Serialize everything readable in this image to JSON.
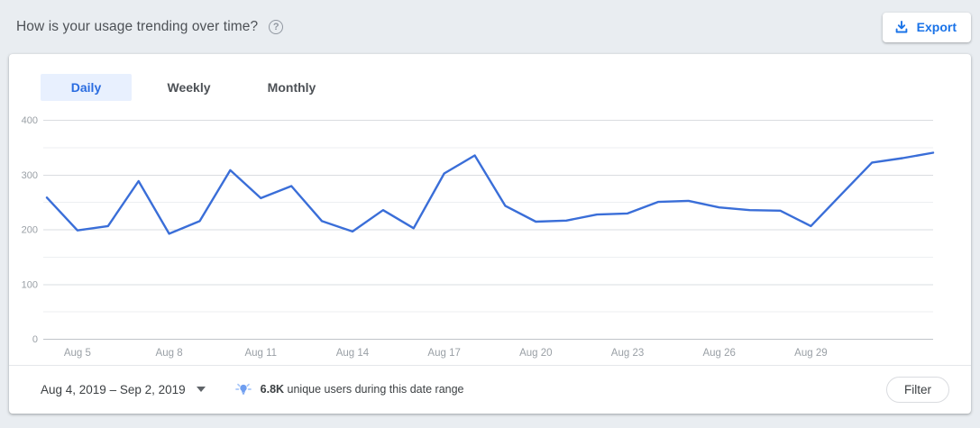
{
  "header": {
    "title": "How is your usage trending over time?",
    "export_label": "Export"
  },
  "tabs": [
    {
      "label": "Daily",
      "active": true
    },
    {
      "label": "Weekly",
      "active": false
    },
    {
      "label": "Monthly",
      "active": false
    }
  ],
  "chart_data": {
    "type": "line",
    "x": [
      "Aug 4",
      "Aug 5",
      "Aug 6",
      "Aug 7",
      "Aug 8",
      "Aug 9",
      "Aug 10",
      "Aug 11",
      "Aug 12",
      "Aug 13",
      "Aug 14",
      "Aug 15",
      "Aug 16",
      "Aug 17",
      "Aug 18",
      "Aug 19",
      "Aug 20",
      "Aug 21",
      "Aug 22",
      "Aug 23",
      "Aug 24",
      "Aug 25",
      "Aug 26",
      "Aug 27",
      "Aug 28",
      "Aug 29",
      "Aug 30",
      "Aug 31",
      "Sep 1",
      "Sep 2"
    ],
    "values": [
      258,
      198,
      206,
      288,
      192,
      215,
      308,
      257,
      279,
      215,
      196,
      235,
      202,
      302,
      335,
      243,
      214,
      216,
      227,
      229,
      250,
      252,
      240,
      235,
      234,
      206,
      264,
      322,
      330,
      340
    ],
    "x_tick_labels": [
      "Aug 5",
      "Aug 8",
      "Aug 11",
      "Aug 14",
      "Aug 17",
      "Aug 20",
      "Aug 23",
      "Aug 26",
      "Aug 29"
    ],
    "y_tick_labels": [
      0,
      100,
      200,
      300,
      400
    ],
    "ylim": [
      0,
      400
    ],
    "grid_interval": 50,
    "grid": true,
    "legend": false,
    "line_color": "#3a6ed8"
  },
  "footer": {
    "date_range_label": "Aug 4, 2019 – Sep 2, 2019",
    "insight_value": "6.8K",
    "insight_text": "unique users during this date range",
    "filter_label": "Filter"
  },
  "colors": {
    "accent_blue": "#1a73e8",
    "active_tab_bg": "#e8f0fe",
    "axis_label": "#9aa0a6",
    "grid_major": "#dadce0",
    "grid_minor": "#edeff2",
    "baseline": "#c0c4c9",
    "bulb_blue": "#6f9ef0",
    "bulb_rays": "#a8c7fa"
  }
}
